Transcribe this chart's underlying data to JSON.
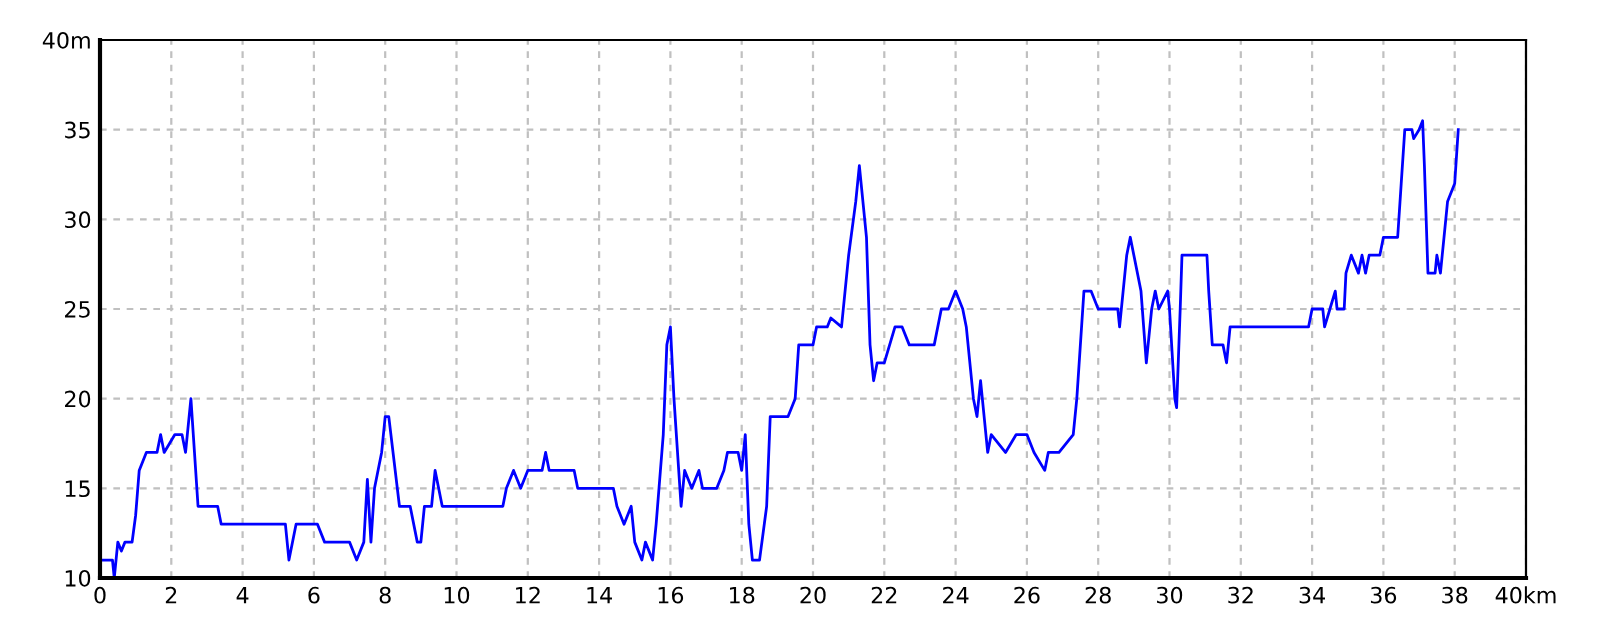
{
  "chart_data": {
    "type": "line",
    "x": [
      0,
      0.35,
      0.4,
      0.5,
      0.6,
      0.7,
      0.9,
      1.0,
      1.1,
      1.3,
      1.6,
      1.7,
      1.8,
      1.95,
      2.1,
      2.3,
      2.4,
      2.55,
      2.65,
      2.75,
      3.3,
      3.4,
      5.2,
      5.3,
      5.5,
      6.1,
      6.3,
      7.0,
      7.2,
      7.4,
      7.5,
      7.6,
      7.7,
      7.9,
      8.0,
      8.1,
      8.4,
      8.7,
      8.9,
      9.0,
      9.1,
      9.3,
      9.4,
      9.6,
      11.3,
      11.4,
      11.6,
      11.8,
      12.0,
      12.4,
      12.5,
      12.6,
      13.3,
      13.4,
      14.0,
      14.4,
      14.5,
      14.7,
      14.9,
      15.0,
      15.2,
      15.3,
      15.5,
      15.6,
      15.8,
      15.9,
      16.0,
      16.1,
      16.3,
      16.4,
      16.6,
      16.8,
      16.9,
      17.3,
      17.5,
      17.6,
      17.9,
      18.0,
      18.1,
      18.2,
      18.3,
      18.5,
      18.7,
      18.8,
      19.3,
      19.5,
      19.6,
      20.0,
      20.1,
      20.4,
      20.5,
      20.8,
      21.0,
      21.2,
      21.3,
      21.5,
      21.6,
      21.7,
      21.8,
      22.0,
      22.3,
      22.5,
      22.7,
      23.4,
      23.6,
      23.8,
      24.0,
      24.2,
      24.3,
      24.5,
      24.6,
      24.7,
      24.9,
      25.0,
      25.4,
      25.7,
      26.0,
      26.2,
      26.5,
      26.6,
      26.9,
      27.3,
      27.4,
      27.6,
      27.8,
      28.0,
      28.55,
      28.6,
      28.8,
      28.9,
      29.2,
      29.35,
      29.5,
      29.6,
      29.7,
      29.95,
      30.0,
      30.15,
      30.2,
      30.3,
      30.35,
      30.5,
      31.05,
      31.1,
      31.2,
      31.5,
      31.6,
      31.7,
      33.9,
      34.0,
      34.3,
      34.35,
      34.5,
      34.65,
      34.7,
      34.9,
      34.95,
      35.1,
      35.3,
      35.4,
      35.5,
      35.6,
      35.9,
      36.0,
      36.4,
      36.5,
      36.6,
      36.8,
      36.85,
      37.0,
      37.1,
      37.15,
      37.25,
      37.45,
      37.5,
      37.6,
      37.7,
      37.8,
      38.0,
      38.1
    ],
    "series": [
      {
        "color": "#0000ff",
        "values": [
          11,
          11,
          10,
          12,
          11.5,
          12,
          12,
          13.5,
          16,
          17,
          17,
          18,
          17,
          17.5,
          18,
          18,
          17,
          20,
          17,
          14,
          14,
          13,
          13,
          11,
          13,
          13,
          12,
          12,
          11,
          12,
          15.5,
          12,
          15,
          17,
          19,
          19,
          14,
          14,
          12,
          12,
          14,
          14,
          16,
          14,
          14,
          15,
          16,
          15,
          16,
          16,
          17,
          16,
          16,
          15,
          15,
          15,
          14,
          13,
          14,
          12,
          11,
          12,
          11,
          13,
          18,
          23,
          24,
          20,
          14,
          16,
          15,
          16,
          15,
          15,
          16,
          17,
          17,
          16,
          18,
          13,
          11,
          11,
          14,
          19,
          19,
          20,
          23,
          23,
          24,
          24,
          24.5,
          24,
          28,
          31,
          33,
          29,
          23,
          21,
          22,
          22,
          24,
          24,
          23,
          23,
          25,
          25,
          26,
          25,
          24,
          20,
          19,
          21,
          17,
          18,
          17,
          18,
          18,
          17,
          16,
          17,
          17,
          18,
          20,
          26,
          26,
          25,
          25,
          24,
          28,
          29,
          26,
          22,
          25,
          26,
          25,
          26,
          25,
          20,
          19.5,
          25,
          28,
          28,
          28,
          26,
          23,
          23,
          22,
          24,
          24,
          25,
          25,
          24,
          25,
          26,
          25,
          25,
          27,
          28,
          27,
          28,
          27,
          28,
          28,
          29,
          29,
          32,
          35,
          35,
          34.5,
          35,
          35.5,
          33,
          27,
          27,
          28,
          27,
          29,
          31,
          32,
          35
        ]
      }
    ],
    "xlim": [
      0,
      40
    ],
    "ylim": [
      10,
      40
    ],
    "xticks": [
      0,
      2,
      4,
      6,
      8,
      10,
      12,
      14,
      16,
      18,
      20,
      22,
      24,
      26,
      28,
      30,
      32,
      34,
      36,
      38,
      {
        "value": 40,
        "label": "40km"
      }
    ],
    "yticks": [
      10,
      15,
      20,
      25,
      30,
      35,
      {
        "value": 40,
        "label": "40m"
      }
    ],
    "grid": true,
    "line_style": "solid",
    "marker": "none"
  }
}
